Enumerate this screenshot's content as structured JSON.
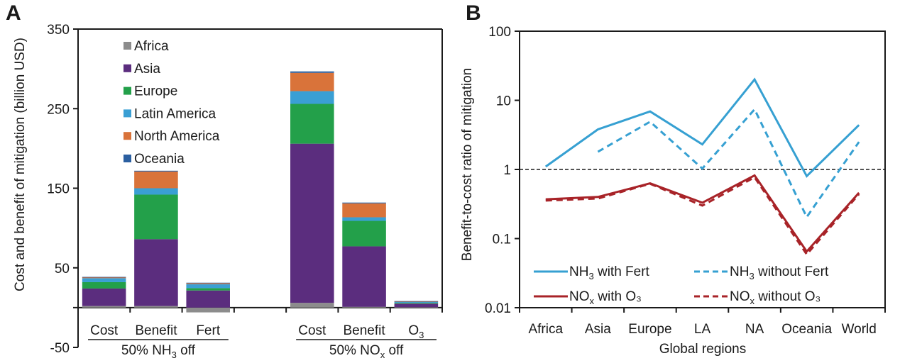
{
  "chart_data": [
    {
      "panel": "A",
      "type": "bar",
      "stacked": true,
      "title": "",
      "ylabel": "Cost and benefit of mitigation (billion USD)",
      "xlabel": "",
      "ylim": [
        -50,
        350
      ],
      "yticks": [
        350,
        250,
        150,
        50,
        -50
      ],
      "ytick_minor": [
        0
      ],
      "categories": [
        "Cost",
        "Benefit",
        "Fert",
        "",
        "Cost",
        "Benefit",
        "O3"
      ],
      "category_labels": [
        {
          "text": "Cost",
          "sub": ""
        },
        {
          "text": "Benefit",
          "sub": ""
        },
        {
          "text": "Fert",
          "sub": ""
        },
        {
          "text": "",
          "sub": ""
        },
        {
          "text": "Cost",
          "sub": ""
        },
        {
          "text": "Benefit",
          "sub": ""
        },
        {
          "text": "O",
          "sub": "3"
        }
      ],
      "groups": [
        {
          "label_pre": "50% NH",
          "label_sub": "3",
          "label_post": " off",
          "categories": [
            0,
            1,
            2
          ]
        },
        {
          "label_pre": "50% NO",
          "label_sub": "x",
          "label_post": " off",
          "categories": [
            4,
            5,
            6
          ]
        }
      ],
      "legend_position": "top-left",
      "series": [
        {
          "name": "Africa",
          "color": "#8c8c8c",
          "values": [
            2,
            2,
            -6,
            null,
            6,
            1,
            0.5
          ]
        },
        {
          "name": "Asia",
          "color": "#5b2d7e",
          "values": [
            22,
            84,
            21.5,
            null,
            200,
            76,
            4.5
          ]
        },
        {
          "name": "Europe",
          "color": "#23a04a",
          "values": [
            8,
            56,
            3,
            null,
            50,
            32,
            1
          ]
        },
        {
          "name": "Latin America",
          "color": "#3a9fd4",
          "values": [
            5,
            8,
            5,
            null,
            16,
            4.5,
            1
          ]
        },
        {
          "name": "North America",
          "color": "#d9733a",
          "values": [
            1.2,
            21,
            1.5,
            null,
            23,
            17.5,
            1
          ]
        },
        {
          "name": "Oceania",
          "color": "#2b5fa0",
          "values": [
            0.4,
            1,
            0.3,
            null,
            1.8,
            1,
            0.2
          ]
        }
      ]
    },
    {
      "panel": "B",
      "type": "line",
      "title": "",
      "ylabel": "Benefit-to-cost ratio of mitigation",
      "xlabel": "Global regions",
      "yscale": "log",
      "ylim": [
        0.01,
        100
      ],
      "yticks": [
        "100",
        "10",
        "1",
        "0.1",
        "0.01"
      ],
      "categories": [
        "Africa",
        "Asia",
        "Europe",
        "LA",
        "NA",
        "Oceania",
        "World"
      ],
      "reference_line": {
        "y": 1,
        "style": "dashed",
        "color": "#1a1a1a"
      },
      "legend_position": "bottom",
      "series": [
        {
          "name_pre": "NH",
          "name_sub": "3",
          "name_post": " with Fert",
          "color": "#36a0d2",
          "dash": false,
          "values": [
            1.1,
            3.8,
            6.9,
            2.3,
            20,
            0.8,
            4.4
          ]
        },
        {
          "name_pre": "NH",
          "name_sub": "3",
          "name_post": " without Fert",
          "color": "#36a0d2",
          "dash": true,
          "values": [
            null,
            1.8,
            4.9,
            1.03,
            7.4,
            0.205,
            2.5
          ]
        },
        {
          "name_pre": "NO",
          "name_sub": "x",
          "name_post": " with O₃",
          "color": "#a82328",
          "dash": false,
          "values": [
            0.37,
            0.4,
            0.63,
            0.33,
            0.82,
            0.065,
            0.46
          ]
        },
        {
          "name_pre": "NO",
          "name_sub": "x",
          "name_post": " without O₃",
          "color": "#a82328",
          "dash": true,
          "values": [
            0.355,
            0.38,
            0.62,
            0.3,
            0.77,
            0.059,
            0.44
          ]
        }
      ]
    }
  ],
  "labels": {
    "panel_a": "A",
    "panel_b": "B"
  }
}
